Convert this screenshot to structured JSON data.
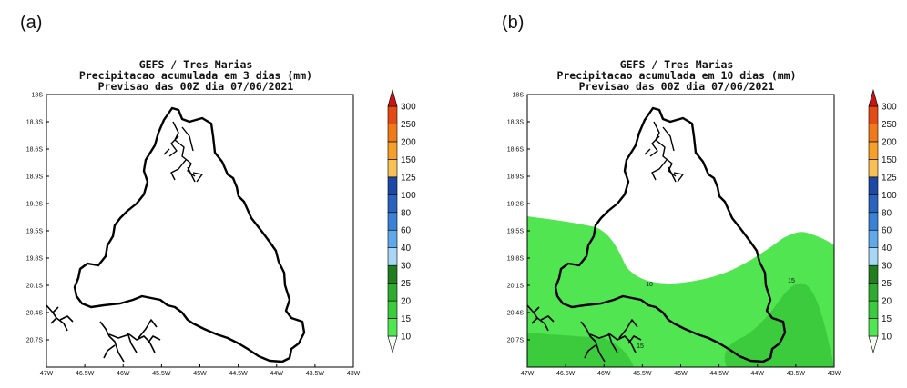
{
  "panels": [
    {
      "label": "(a)",
      "title_lines": [
        "GEFS / Tres Marias",
        "Precipitacao acumulada em 3 dias (mm)",
        "Previsao das 00Z dia 07/06/2021"
      ]
    },
    {
      "label": "(b)",
      "title_lines": [
        "GEFS / Tres Marias",
        "Precipitacao acumulada em 10 dias (mm)",
        "Previsao das 00Z dia 07/06/2021"
      ]
    }
  ],
  "chart_data": [
    {
      "type": "heatmap",
      "panel": "a",
      "title": "GEFS / Tres Marias — Precipitacao acumulada em 3 dias (mm) — Previsao das 00Z dia 07/06/2021",
      "xlim": [
        -47,
        -43
      ],
      "ylim": [
        -21,
        -18
      ],
      "x_tick_labels": [
        "47W",
        "46.5W",
        "46W",
        "45.5W",
        "45W",
        "44.5W",
        "44W",
        "43.5W",
        "43W"
      ],
      "y_tick_labels": [
        "18S",
        "18.3S",
        "18.6S",
        "18.9S",
        "19.2S",
        "19.5S",
        "19.8S",
        "20.1S",
        "20.4S",
        "20.7S"
      ],
      "contour_labels": [],
      "field_summary": "no shaded precipitation (below 10 mm everywhere)"
    },
    {
      "type": "heatmap",
      "panel": "b",
      "title": "GEFS / Tres Marias — Precipitacao acumulada em 10 dias (mm) — Previsao das 00Z dia 07/06/2021",
      "xlim": [
        -47,
        -43
      ],
      "ylim": [
        -21,
        -18
      ],
      "x_tick_labels": [
        "47W",
        "46.5W",
        "46W",
        "45.5W",
        "45W",
        "44.5W",
        "44W",
        "43.5W",
        "43W"
      ],
      "y_tick_labels": [
        "18S",
        "18.3S",
        "18.6S",
        "18.9S",
        "19.2S",
        "19.5S",
        "19.8S",
        "20.1S",
        "20.4S",
        "20.7S"
      ],
      "contour_labels": [
        "10",
        "15",
        "15"
      ],
      "field_summary": "10-15 mm band over southern half, 15-20 mm in the south-east and south-west corners"
    }
  ],
  "colorbar": {
    "labels": [
      "10",
      "15",
      "20",
      "25",
      "30",
      "40",
      "60",
      "80",
      "100",
      "125",
      "150",
      "200",
      "250",
      "300"
    ],
    "colors": [
      "#f5fff5",
      "#52e552",
      "#3ccb3c",
      "#2fab2f",
      "#1f7f1f",
      "#a7d6f6",
      "#5fa9ea",
      "#3a82d5",
      "#2a63bf",
      "#1c48a6",
      "#f8c055",
      "#f6a02a",
      "#f07a1a",
      "#e34a15",
      "#c81414"
    ]
  },
  "colors": {
    "shade_10_15": "#52e552",
    "shade_15_20": "#3ccb3c",
    "map_outline": "#000000",
    "frame": "#000000"
  }
}
